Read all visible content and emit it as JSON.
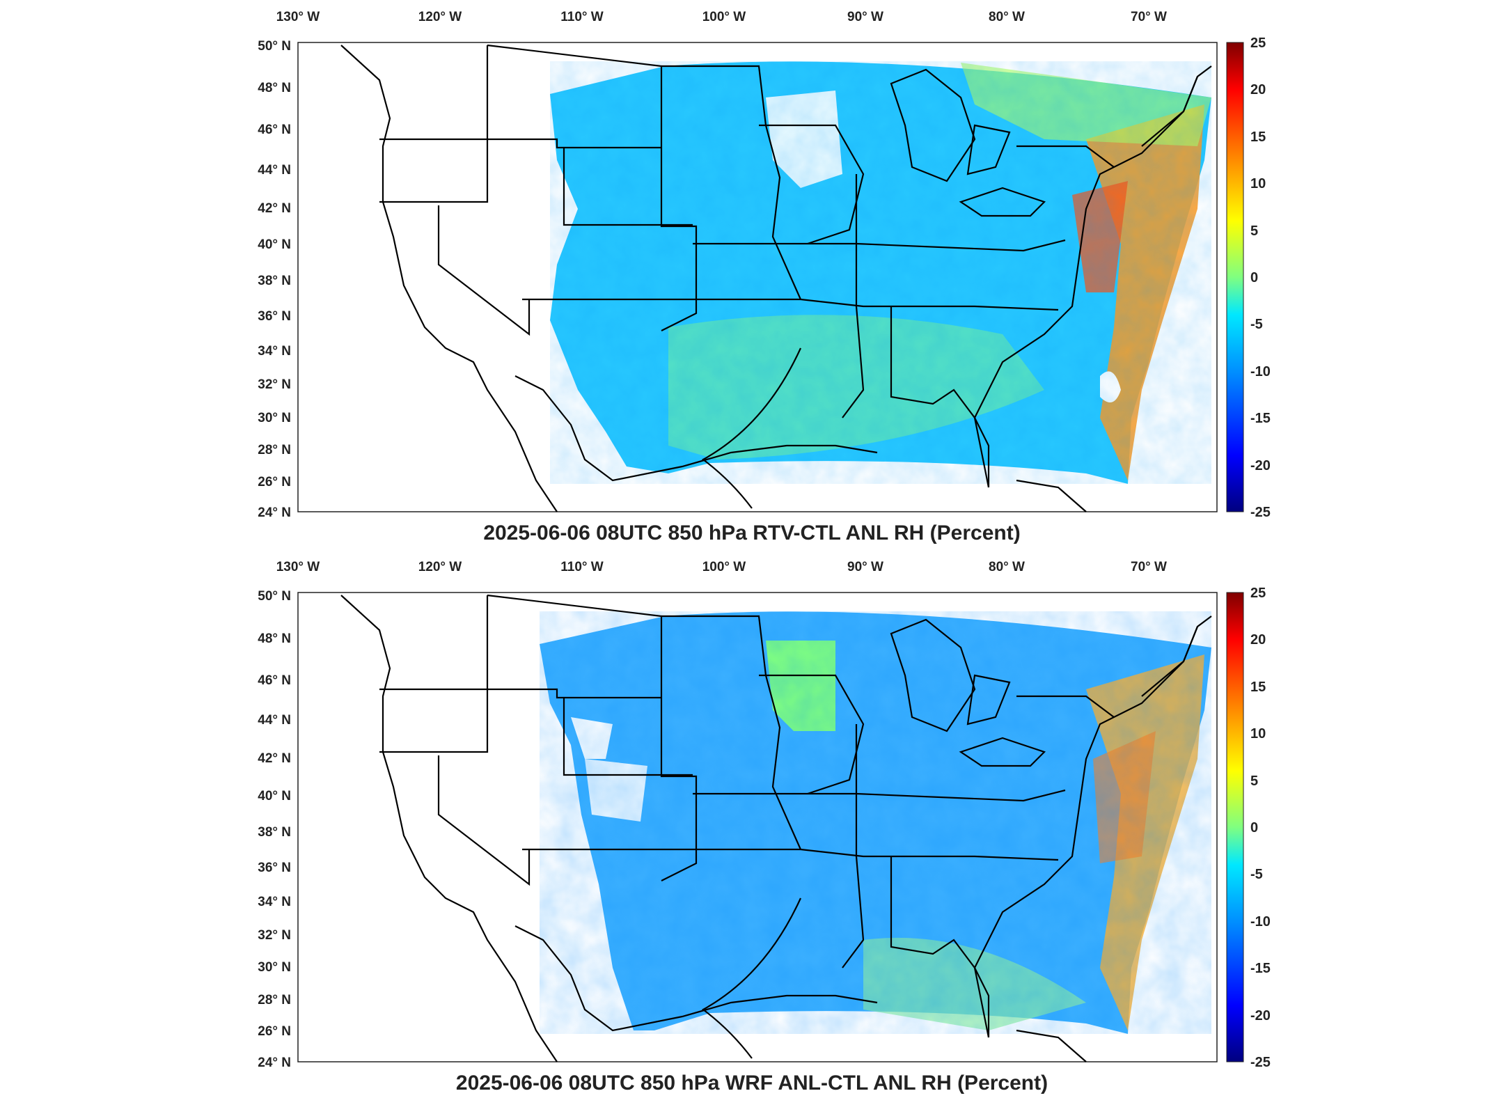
{
  "panels": [
    {
      "title": "2025-06-06 08UTC 850 hPa RTV-CTL ANL RH (Percent)",
      "lon_ticks": [
        "130° W",
        "120° W",
        "110° W",
        "100° W",
        "90° W",
        "80° W",
        "70° W"
      ],
      "lat_ticks": [
        "50° N",
        "48° N",
        "46° N",
        "44° N",
        "42° N",
        "40° N",
        "38° N",
        "36° N",
        "34° N",
        "32° N",
        "30° N",
        "28° N",
        "26° N",
        "24° N"
      ],
      "colorbar_ticks": [
        "25",
        "20",
        "15",
        "10",
        "5",
        "0",
        "-5",
        "-10",
        "-15",
        "-20",
        "-25"
      ]
    },
    {
      "title": "2025-06-06 08UTC 850 hPa WRF ANL-CTL ANL RH (Percent)",
      "lon_ticks": [
        "130° W",
        "120° W",
        "110° W",
        "100° W",
        "90° W",
        "80° W",
        "70° W"
      ],
      "lat_ticks": [
        "50° N",
        "48° N",
        "46° N",
        "44° N",
        "42° N",
        "40° N",
        "38° N",
        "36° N",
        "34° N",
        "32° N",
        "30° N",
        "28° N",
        "26° N",
        "24° N"
      ],
      "colorbar_ticks": [
        "25",
        "20",
        "15",
        "10",
        "5",
        "0",
        "-5",
        "-10",
        "-15",
        "-20",
        "-25"
      ]
    }
  ],
  "colors": {
    "cold": "#00007f",
    "blue": "#0050ff",
    "cyan": "#00d4ff",
    "green": "#80ff80",
    "yellow": "#ffe000",
    "orange": "#ff7000",
    "red": "#7f0000"
  }
}
